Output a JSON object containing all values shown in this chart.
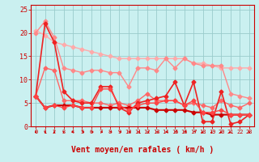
{
  "xlabel": "Vent moyen/en rafales ( km/h )",
  "xlim": [
    -0.5,
    23.5
  ],
  "ylim": [
    0,
    26
  ],
  "yticks": [
    0,
    5,
    10,
    15,
    20,
    25
  ],
  "xticks": [
    0,
    1,
    2,
    3,
    4,
    5,
    6,
    7,
    8,
    9,
    10,
    11,
    12,
    13,
    14,
    15,
    16,
    17,
    18,
    19,
    20,
    21,
    22,
    23
  ],
  "background_color": "#caf0f0",
  "grid_color": "#99cccc",
  "line1_color": "#ffaaaa",
  "line2_color": "#ff8888",
  "line3_color": "#ff6666",
  "line4_color": "#dd0000",
  "line5_color": "#bb0000",
  "line6_color": "#ff4444",
  "lines": [
    {
      "y": [
        20.5,
        19.5,
        18.0,
        17.5,
        17.0,
        16.5,
        16.0,
        15.5,
        15.0,
        14.5,
        14.5,
        14.5,
        14.5,
        14.5,
        14.5,
        14.5,
        14.5,
        13.5,
        13.5,
        13.0,
        12.5,
        12.5,
        12.5,
        12.5
      ],
      "color": "#ffaaaa",
      "lw": 1.0,
      "ms": 2.5
    },
    {
      "y": [
        20.0,
        22.5,
        19.0,
        12.5,
        12.0,
        11.5,
        12.0,
        12.0,
        11.5,
        11.5,
        8.5,
        12.5,
        12.5,
        12.0,
        14.5,
        12.5,
        14.5,
        13.5,
        13.0,
        13.0,
        13.0,
        7.0,
        6.5,
        6.0
      ],
      "color": "#ff8888",
      "lw": 1.0,
      "ms": 2.5
    },
    {
      "y": [
        6.5,
        12.5,
        12.0,
        5.5,
        5.5,
        5.5,
        5.0,
        5.0,
        4.5,
        5.0,
        4.5,
        5.5,
        7.0,
        5.5,
        5.5,
        5.5,
        4.5,
        5.0,
        4.5,
        4.0,
        5.5,
        4.5,
        4.0,
        5.0
      ],
      "color": "#ff6666",
      "lw": 1.0,
      "ms": 2.5
    },
    {
      "y": [
        6.5,
        4.0,
        4.5,
        4.5,
        4.5,
        4.0,
        4.0,
        4.0,
        4.0,
        4.0,
        4.0,
        4.0,
        4.0,
        3.5,
        3.5,
        3.5,
        3.5,
        3.0,
        3.0,
        2.5,
        2.5,
        2.5,
        2.5,
        2.5
      ],
      "color": "#cc0000",
      "lw": 1.5,
      "ms": 2.5
    },
    {
      "y": [
        6.5,
        22.0,
        18.0,
        7.5,
        5.5,
        5.0,
        5.0,
        8.5,
        8.5,
        4.0,
        3.0,
        5.0,
        5.5,
        6.0,
        6.5,
        9.5,
        4.5,
        9.5,
        1.0,
        1.0,
        7.5,
        0.5,
        1.0,
        2.5
      ],
      "color": "#ee2222",
      "lw": 1.2,
      "ms": 2.5
    },
    {
      "y": [
        6.5,
        4.0,
        4.5,
        4.0,
        4.5,
        4.0,
        4.0,
        8.0,
        8.0,
        4.5,
        3.5,
        4.5,
        5.0,
        5.0,
        5.5,
        5.5,
        4.5,
        5.5,
        3.0,
        3.0,
        3.5,
        2.5,
        2.5,
        2.5
      ],
      "color": "#ff4444",
      "lw": 1.0,
      "ms": 2.5
    }
  ],
  "xlabel_color": "#cc0000",
  "xlabel_fontsize": 7,
  "tick_fontsize": 5,
  "tick_color": "#cc0000"
}
